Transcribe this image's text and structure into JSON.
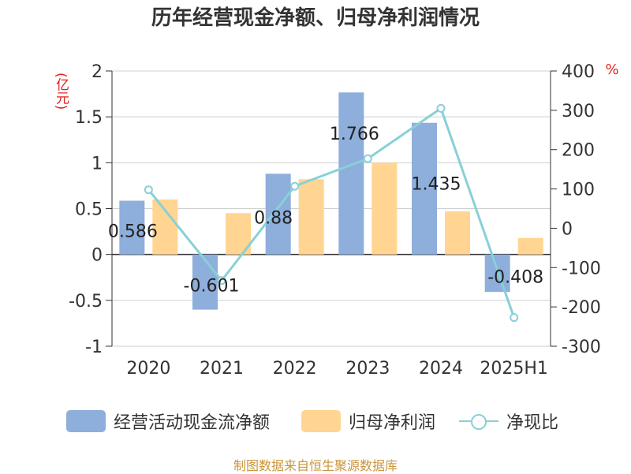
{
  "title": "历年经营现金净额、归母净利润情况",
  "source": "制图数据来自恒生聚源数据库",
  "colors": {
    "cash_flow": "#8eaedb",
    "net_profit": "#ffd591",
    "ratio": "#88d0d8",
    "axis_unit": "#e02020",
    "grid": "#cfcfcf",
    "source_text": "#c8963c"
  },
  "chart_data": {
    "type": "bar+line",
    "categories": [
      "2020",
      "2021",
      "2022",
      "2023",
      "2024",
      "2025H1"
    ],
    "left_axis": {
      "unit": "(亿元)",
      "range": [
        -1,
        2
      ],
      "ticks": [
        "2",
        "1.5",
        "1",
        "0.5",
        "0",
        "-0.5",
        "-1"
      ]
    },
    "right_axis": {
      "unit": "%",
      "range": [
        -300,
        400
      ],
      "ticks": [
        "400",
        "300",
        "200",
        "100",
        "0",
        "-100",
        "-200",
        "-300"
      ]
    },
    "series": [
      {
        "name": "经营活动现金流净额",
        "type": "bar",
        "axis": "left",
        "values": [
          0.586,
          -0.601,
          0.88,
          1.766,
          1.435,
          -0.408
        ],
        "labels": [
          "0.586",
          "-0.601",
          "0.88",
          "1.766",
          "1.435",
          "-0.408"
        ]
      },
      {
        "name": "归母净利润",
        "type": "bar",
        "axis": "left",
        "values": [
          0.6,
          0.45,
          0.82,
          1.0,
          0.47,
          0.18
        ]
      },
      {
        "name": "净现比",
        "type": "line",
        "axis": "right",
        "values": [
          98,
          -133,
          107,
          177,
          305,
          -227
        ]
      }
    ],
    "legend_position": "bottom",
    "grid": true
  }
}
